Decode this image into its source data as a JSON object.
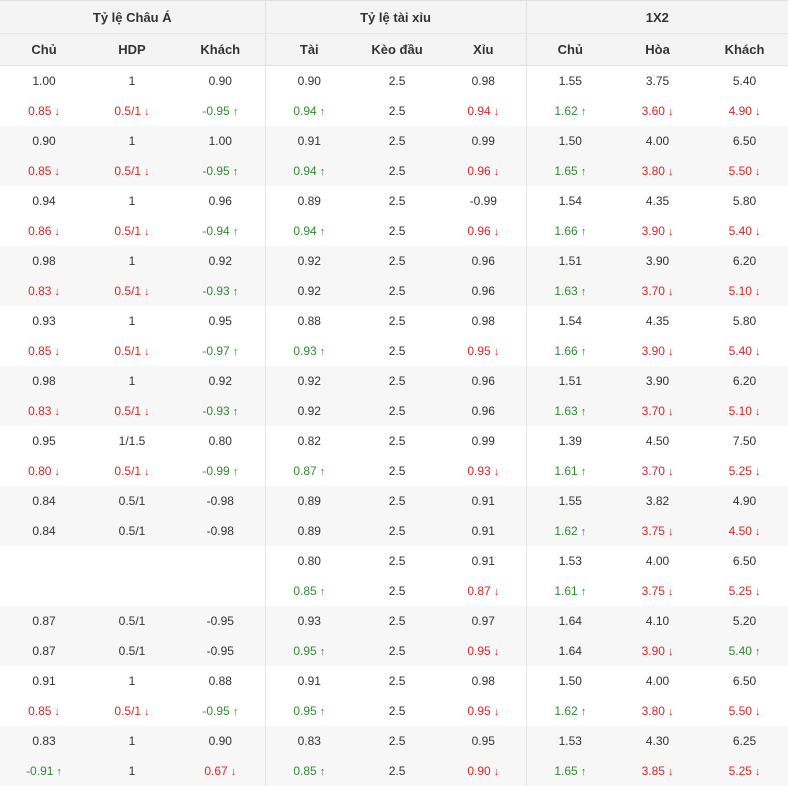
{
  "headers": {
    "groups": [
      "Tỷ lệ Châu Á",
      "Tỷ lệ tài xỉu",
      "1X2"
    ],
    "columns": [
      "Chủ",
      "HDP",
      "Khách",
      "Tài",
      "Kèo đầu",
      "Xỉu",
      "Chủ",
      "Hòa",
      "Khách"
    ]
  },
  "rows": [
    [
      {
        "v": "1.00"
      },
      {
        "v": "1"
      },
      {
        "v": "0.90"
      },
      {
        "v": "0.90"
      },
      {
        "v": "2.5"
      },
      {
        "v": "0.98"
      },
      {
        "v": "1.55"
      },
      {
        "v": "3.75"
      },
      {
        "v": "5.40"
      }
    ],
    [
      {
        "v": "0.85",
        "t": "down"
      },
      {
        "v": "0.5/1",
        "t": "down"
      },
      {
        "v": "-0.95",
        "t": "up"
      },
      {
        "v": "0.94",
        "t": "up"
      },
      {
        "v": "2.5"
      },
      {
        "v": "0.94",
        "t": "down"
      },
      {
        "v": "1.62",
        "t": "up"
      },
      {
        "v": "3.60",
        "t": "down"
      },
      {
        "v": "4.90",
        "t": "down"
      }
    ],
    [
      {
        "v": "0.90"
      },
      {
        "v": "1"
      },
      {
        "v": "1.00"
      },
      {
        "v": "0.91"
      },
      {
        "v": "2.5"
      },
      {
        "v": "0.99"
      },
      {
        "v": "1.50"
      },
      {
        "v": "4.00"
      },
      {
        "v": "6.50"
      }
    ],
    [
      {
        "v": "0.85",
        "t": "down"
      },
      {
        "v": "0.5/1",
        "t": "down"
      },
      {
        "v": "-0.95",
        "t": "up"
      },
      {
        "v": "0.94",
        "t": "up"
      },
      {
        "v": "2.5"
      },
      {
        "v": "0.96",
        "t": "down"
      },
      {
        "v": "1.65",
        "t": "up"
      },
      {
        "v": "3.80",
        "t": "down"
      },
      {
        "v": "5.50",
        "t": "down"
      }
    ],
    [
      {
        "v": "0.94"
      },
      {
        "v": "1"
      },
      {
        "v": "0.96"
      },
      {
        "v": "0.89"
      },
      {
        "v": "2.5"
      },
      {
        "v": "-0.99"
      },
      {
        "v": "1.54"
      },
      {
        "v": "4.35"
      },
      {
        "v": "5.80"
      }
    ],
    [
      {
        "v": "0.86",
        "t": "down"
      },
      {
        "v": "0.5/1",
        "t": "down"
      },
      {
        "v": "-0.94",
        "t": "up"
      },
      {
        "v": "0.94",
        "t": "up"
      },
      {
        "v": "2.5"
      },
      {
        "v": "0.96",
        "t": "down"
      },
      {
        "v": "1.66",
        "t": "up"
      },
      {
        "v": "3.90",
        "t": "down"
      },
      {
        "v": "5.40",
        "t": "down"
      }
    ],
    [
      {
        "v": "0.98"
      },
      {
        "v": "1"
      },
      {
        "v": "0.92"
      },
      {
        "v": "0.92"
      },
      {
        "v": "2.5"
      },
      {
        "v": "0.96"
      },
      {
        "v": "1.51"
      },
      {
        "v": "3.90"
      },
      {
        "v": "6.20"
      }
    ],
    [
      {
        "v": "0.83",
        "t": "down"
      },
      {
        "v": "0.5/1",
        "t": "down"
      },
      {
        "v": "-0.93",
        "t": "up"
      },
      {
        "v": "0.92"
      },
      {
        "v": "2.5"
      },
      {
        "v": "0.96"
      },
      {
        "v": "1.63",
        "t": "up"
      },
      {
        "v": "3.70",
        "t": "down"
      },
      {
        "v": "5.10",
        "t": "down"
      }
    ],
    [
      {
        "v": "0.93"
      },
      {
        "v": "1"
      },
      {
        "v": "0.95"
      },
      {
        "v": "0.88"
      },
      {
        "v": "2.5"
      },
      {
        "v": "0.98"
      },
      {
        "v": "1.54"
      },
      {
        "v": "4.35"
      },
      {
        "v": "5.80"
      }
    ],
    [
      {
        "v": "0.85",
        "t": "down"
      },
      {
        "v": "0.5/1",
        "t": "down"
      },
      {
        "v": "-0.97",
        "t": "up"
      },
      {
        "v": "0.93",
        "t": "up"
      },
      {
        "v": "2.5"
      },
      {
        "v": "0.95",
        "t": "down"
      },
      {
        "v": "1.66",
        "t": "up"
      },
      {
        "v": "3.90",
        "t": "down"
      },
      {
        "v": "5.40",
        "t": "down"
      }
    ],
    [
      {
        "v": "0.98"
      },
      {
        "v": "1"
      },
      {
        "v": "0.92"
      },
      {
        "v": "0.92"
      },
      {
        "v": "2.5"
      },
      {
        "v": "0.96"
      },
      {
        "v": "1.51"
      },
      {
        "v": "3.90"
      },
      {
        "v": "6.20"
      }
    ],
    [
      {
        "v": "0.83",
        "t": "down"
      },
      {
        "v": "0.5/1",
        "t": "down"
      },
      {
        "v": "-0.93",
        "t": "up"
      },
      {
        "v": "0.92"
      },
      {
        "v": "2.5"
      },
      {
        "v": "0.96"
      },
      {
        "v": "1.63",
        "t": "up"
      },
      {
        "v": "3.70",
        "t": "down"
      },
      {
        "v": "5.10",
        "t": "down"
      }
    ],
    [
      {
        "v": "0.95"
      },
      {
        "v": "1/1.5"
      },
      {
        "v": "0.80"
      },
      {
        "v": "0.82"
      },
      {
        "v": "2.5"
      },
      {
        "v": "0.99"
      },
      {
        "v": "1.39"
      },
      {
        "v": "4.50"
      },
      {
        "v": "7.50"
      }
    ],
    [
      {
        "v": "0.80",
        "t": "down"
      },
      {
        "v": "0.5/1",
        "t": "down"
      },
      {
        "v": "-0.99",
        "t": "up"
      },
      {
        "v": "0.87",
        "t": "up"
      },
      {
        "v": "2.5"
      },
      {
        "v": "0.93",
        "t": "down"
      },
      {
        "v": "1.61",
        "t": "up"
      },
      {
        "v": "3.70",
        "t": "down"
      },
      {
        "v": "5.25",
        "t": "down"
      }
    ],
    [
      {
        "v": "0.84"
      },
      {
        "v": "0.5/1"
      },
      {
        "v": "-0.98"
      },
      {
        "v": "0.89"
      },
      {
        "v": "2.5"
      },
      {
        "v": "0.91"
      },
      {
        "v": "1.55"
      },
      {
        "v": "3.82"
      },
      {
        "v": "4.90"
      }
    ],
    [
      {
        "v": "0.84"
      },
      {
        "v": "0.5/1"
      },
      {
        "v": "-0.98"
      },
      {
        "v": "0.89"
      },
      {
        "v": "2.5"
      },
      {
        "v": "0.91"
      },
      {
        "v": "1.62",
        "t": "up"
      },
      {
        "v": "3.75",
        "t": "down"
      },
      {
        "v": "4.50",
        "t": "down"
      }
    ],
    [
      {
        "v": ""
      },
      {
        "v": ""
      },
      {
        "v": ""
      },
      {
        "v": "0.80"
      },
      {
        "v": "2.5"
      },
      {
        "v": "0.91"
      },
      {
        "v": "1.53"
      },
      {
        "v": "4.00"
      },
      {
        "v": "6.50"
      }
    ],
    [
      {
        "v": ""
      },
      {
        "v": ""
      },
      {
        "v": ""
      },
      {
        "v": "0.85",
        "t": "up"
      },
      {
        "v": "2.5"
      },
      {
        "v": "0.87",
        "t": "down"
      },
      {
        "v": "1.61",
        "t": "up"
      },
      {
        "v": "3.75",
        "t": "down"
      },
      {
        "v": "5.25",
        "t": "down"
      }
    ],
    [
      {
        "v": "0.87"
      },
      {
        "v": "0.5/1"
      },
      {
        "v": "-0.95"
      },
      {
        "v": "0.93"
      },
      {
        "v": "2.5"
      },
      {
        "v": "0.97"
      },
      {
        "v": "1.64"
      },
      {
        "v": "4.10"
      },
      {
        "v": "5.20"
      }
    ],
    [
      {
        "v": "0.87"
      },
      {
        "v": "0.5/1"
      },
      {
        "v": "-0.95"
      },
      {
        "v": "0.95",
        "t": "up"
      },
      {
        "v": "2.5"
      },
      {
        "v": "0.95",
        "t": "down"
      },
      {
        "v": "1.64"
      },
      {
        "v": "3.90",
        "t": "down"
      },
      {
        "v": "5.40",
        "t": "up"
      }
    ],
    [
      {
        "v": "0.91"
      },
      {
        "v": "1"
      },
      {
        "v": "0.88"
      },
      {
        "v": "0.91"
      },
      {
        "v": "2.5"
      },
      {
        "v": "0.98"
      },
      {
        "v": "1.50"
      },
      {
        "v": "4.00"
      },
      {
        "v": "6.50"
      }
    ],
    [
      {
        "v": "0.85",
        "t": "down"
      },
      {
        "v": "0.5/1",
        "t": "down"
      },
      {
        "v": "-0.95",
        "t": "up"
      },
      {
        "v": "0.95",
        "t": "up"
      },
      {
        "v": "2.5"
      },
      {
        "v": "0.95",
        "t": "down"
      },
      {
        "v": "1.62",
        "t": "up"
      },
      {
        "v": "3.80",
        "t": "down"
      },
      {
        "v": "5.50",
        "t": "down"
      }
    ],
    [
      {
        "v": "0.83"
      },
      {
        "v": "1"
      },
      {
        "v": "0.90"
      },
      {
        "v": "0.83"
      },
      {
        "v": "2.5"
      },
      {
        "v": "0.95"
      },
      {
        "v": "1.53"
      },
      {
        "v": "4.30"
      },
      {
        "v": "6.25"
      }
    ],
    [
      {
        "v": "-0.91",
        "t": "up"
      },
      {
        "v": "1"
      },
      {
        "v": "0.67",
        "t": "down"
      },
      {
        "v": "0.85",
        "t": "up"
      },
      {
        "v": "2.5"
      },
      {
        "v": "0.90",
        "t": "down"
      },
      {
        "v": "1.65",
        "t": "up"
      },
      {
        "v": "3.85",
        "t": "down"
      },
      {
        "v": "5.25",
        "t": "down"
      }
    ]
  ],
  "icons": {
    "up": "arrow-up-icon",
    "down": "arrow-down-icon"
  },
  "colors": {
    "up": "#2e8b2e",
    "down": "#e02222",
    "header_bg": "#f4f4f4",
    "alt_row_bg": "#f7f7f7"
  }
}
